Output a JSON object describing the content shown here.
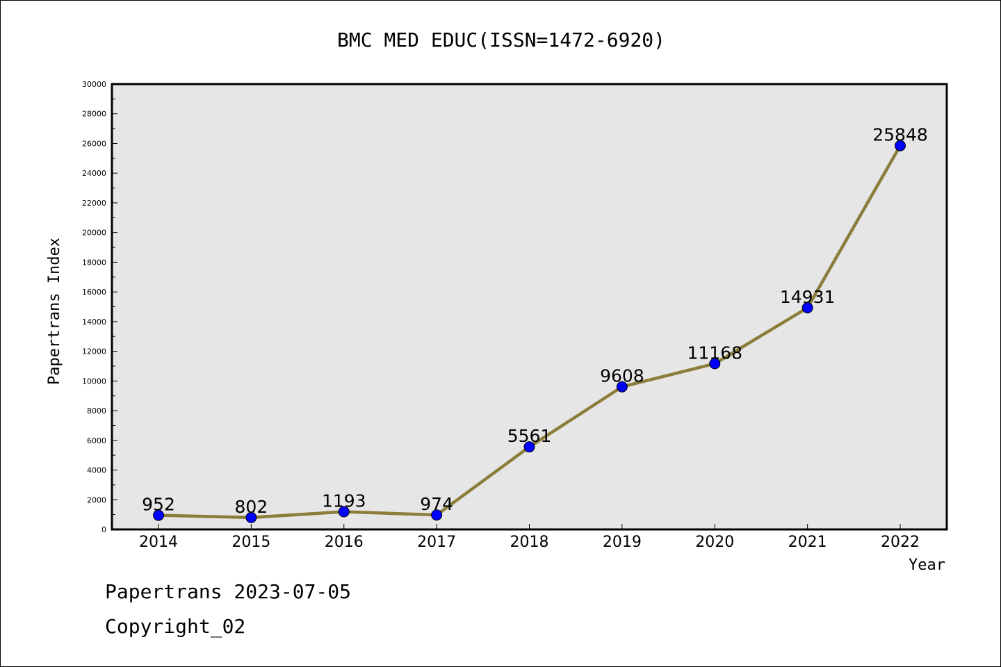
{
  "chart_data": {
    "type": "line",
    "title": "BMC MED EDUC(ISSN=1472-6920)",
    "xlabel": "Year",
    "ylabel": "Papertrans Index",
    "categories": [
      "2014",
      "2015",
      "2016",
      "2017",
      "2018",
      "2019",
      "2020",
      "2021",
      "2022"
    ],
    "series": [
      {
        "values": [
          952,
          802,
          1193,
          974,
          5561,
          9608,
          11168,
          14931,
          25848
        ]
      }
    ],
    "ylim": [
      0,
      30000
    ],
    "yticks": [
      0,
      2000,
      4000,
      6000,
      8000,
      10000,
      12000,
      14000,
      16000,
      18000,
      20000,
      22000,
      24000,
      26000,
      28000,
      30000
    ],
    "grid": false,
    "colors": {
      "line": "#8b7d3a",
      "marker": "#0000ff",
      "plot_bg": "#e6e6e6"
    }
  },
  "footer": {
    "line1": "Papertrans 2023-07-05",
    "line2": "Copyright_02"
  }
}
